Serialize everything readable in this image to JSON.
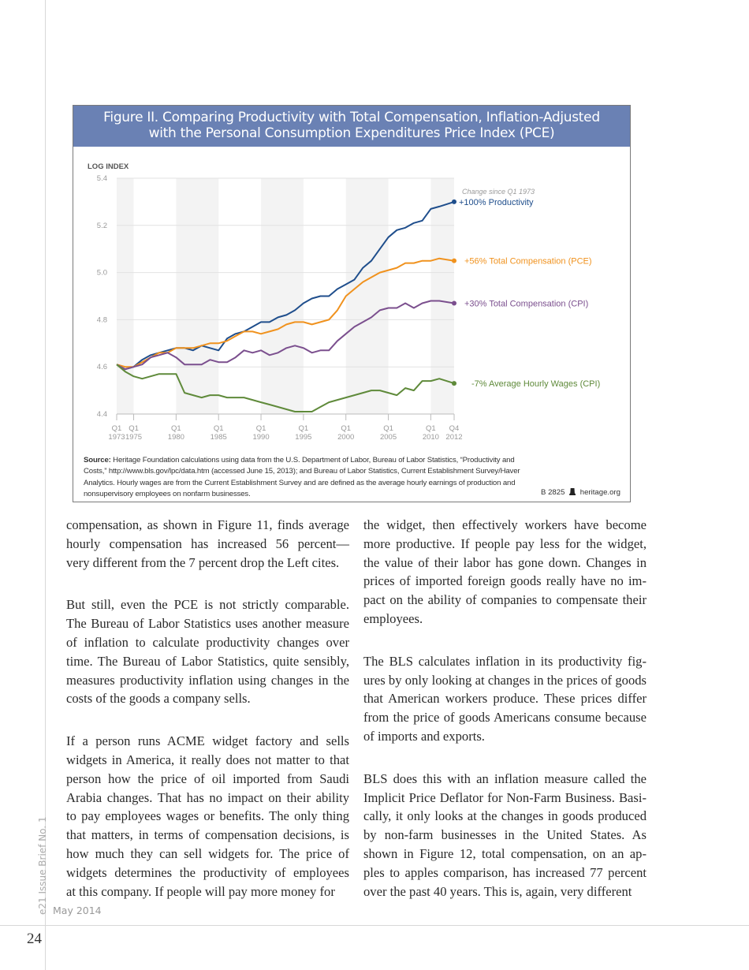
{
  "figure": {
    "title_line1": "Figure II. Comparing Productivity with Total Compensation, Inflation-Adjusted",
    "title_line2": "with the Personal Consumption Expenditures Price Index (PCE)",
    "header_color": "#6a81b4",
    "source_label": "Source:",
    "source_text": " Heritage Foundation calculations using data from the U.S. Department of Labor, Bureau of Labor Statistics, “Productivity and Costs,” http://www.bls.gov/lpc/data.htm (accessed June 15, 2013); and Bureau of Labor Statistics, Current Establishment Survey/Haver Analytics. Hourly wages are from the Current Establishment Survey and are defined as the average hourly earnings of production and nonsupervisory employees on nonfarm businesses.",
    "credit_code": "B 2825",
    "credit_icon": "liberty-bell-icon",
    "credit_site": "heritage.org"
  },
  "chart_data": {
    "type": "line",
    "ylabel": "LOG INDEX",
    "ylim": [
      4.4,
      5.4
    ],
    "yticks": [
      "5.4",
      "5.2",
      "5.0",
      "4.8",
      "4.6",
      "4.4"
    ],
    "ytick_values": [
      5.4,
      5.2,
      5.0,
      4.8,
      4.6,
      4.4
    ],
    "grid": "horizontal",
    "shaded_bands": [
      [
        1973,
        1975
      ],
      [
        1980,
        1985
      ],
      [
        1990,
        1995
      ],
      [
        2000,
        2005
      ],
      [
        2010,
        2012.75
      ]
    ],
    "xticks": [
      {
        "q": "Q1",
        "year": "1973",
        "value": 1973
      },
      {
        "q": "Q1",
        "year": "1975",
        "value": 1975
      },
      {
        "q": "Q1",
        "year": "1980",
        "value": 1980
      },
      {
        "q": "Q1",
        "year": "1985",
        "value": 1985
      },
      {
        "q": "Q1",
        "year": "1990",
        "value": 1990
      },
      {
        "q": "Q1",
        "year": "1995",
        "value": 1995
      },
      {
        "q": "Q1",
        "year": "2000",
        "value": 2000
      },
      {
        "q": "Q1",
        "year": "2005",
        "value": 2005
      },
      {
        "q": "Q1",
        "year": "2010",
        "value": 2010
      },
      {
        "q": "Q4",
        "year": "2012",
        "value": 2012.75
      }
    ],
    "xlim": [
      1973,
      2012.75
    ],
    "legend_note": "Change since Q1 1973",
    "x": [
      1973,
      1974,
      1975,
      1976,
      1977,
      1978,
      1979,
      1980,
      1981,
      1982,
      1983,
      1984,
      1985,
      1986,
      1987,
      1988,
      1989,
      1990,
      1991,
      1992,
      1993,
      1994,
      1995,
      1996,
      1997,
      1998,
      1999,
      2000,
      2001,
      2002,
      2003,
      2004,
      2005,
      2006,
      2007,
      2008,
      2009,
      2010,
      2011,
      2012.75
    ],
    "series": [
      {
        "name": "Productivity",
        "change": "+100%",
        "color": "#1f4e8c",
        "values": [
          4.61,
          4.59,
          4.6,
          4.63,
          4.65,
          4.66,
          4.67,
          4.68,
          4.68,
          4.67,
          4.69,
          4.68,
          4.67,
          4.72,
          4.74,
          4.75,
          4.77,
          4.79,
          4.79,
          4.81,
          4.82,
          4.84,
          4.87,
          4.89,
          4.9,
          4.9,
          4.93,
          4.95,
          4.97,
          5.02,
          5.05,
          5.1,
          5.15,
          5.18,
          5.19,
          5.21,
          5.22,
          5.27,
          5.28,
          5.3
        ]
      },
      {
        "name": "Total Compensation (PCE)",
        "change": "+56%",
        "color": "#f0921e",
        "values": [
          4.61,
          4.6,
          4.6,
          4.62,
          4.64,
          4.66,
          4.66,
          4.68,
          4.68,
          4.68,
          4.69,
          4.7,
          4.7,
          4.71,
          4.73,
          4.75,
          4.75,
          4.74,
          4.75,
          4.76,
          4.78,
          4.79,
          4.79,
          4.78,
          4.79,
          4.8,
          4.84,
          4.9,
          4.93,
          4.96,
          4.98,
          5.0,
          5.01,
          5.02,
          5.04,
          5.04,
          5.05,
          5.05,
          5.06,
          5.05
        ]
      },
      {
        "name": "Total Compensation (CPI)",
        "change": "+30%",
        "color": "#7b4f8e",
        "values": [
          4.61,
          4.59,
          4.6,
          4.61,
          4.64,
          4.65,
          4.66,
          4.64,
          4.61,
          4.61,
          4.61,
          4.63,
          4.62,
          4.62,
          4.64,
          4.67,
          4.66,
          4.67,
          4.65,
          4.66,
          4.68,
          4.69,
          4.68,
          4.66,
          4.67,
          4.67,
          4.71,
          4.74,
          4.77,
          4.79,
          4.81,
          4.84,
          4.85,
          4.85,
          4.87,
          4.85,
          4.87,
          4.88,
          4.88,
          4.87
        ]
      },
      {
        "name": "Average Hourly Wages (CPI)",
        "change": "-7%",
        "color": "#5f8a3a",
        "values": [
          4.61,
          4.58,
          4.56,
          4.55,
          4.56,
          4.57,
          4.57,
          4.57,
          4.49,
          4.48,
          4.47,
          4.48,
          4.48,
          4.47,
          4.47,
          4.47,
          4.46,
          4.45,
          4.44,
          4.43,
          4.42,
          4.41,
          4.41,
          4.41,
          4.43,
          4.45,
          4.46,
          4.47,
          4.48,
          4.49,
          4.5,
          4.5,
          4.49,
          4.48,
          4.51,
          4.5,
          4.54,
          4.54,
          4.55,
          4.53
        ]
      }
    ]
  },
  "body": {
    "left": [
      [
        "compensation, as shown in Figure 11, finds average",
        "hourly compensation has increased 56 percent—",
        "very different from the 7 percent drop the Left cites."
      ],
      [
        "But still, even the PCE is not strictly comparable.",
        "The Bureau of Labor Statistics uses another measure",
        "of inflation to calculate productivity changes over",
        "time. The Bureau of Labor Statistics, quite sensibly,",
        "measures productivity inflation using changes in the",
        "costs of the goods a company sells."
      ],
      [
        "If a person runs ACME widget factory and sells",
        "widgets in America, it really does not matter to that",
        "person how the price of oil imported from Saudi",
        "Arabia changes. That has no impact on their ability",
        "to pay employees wages or benefits. The only thing",
        "that matters, in terms of compensation decisions, is",
        "how much they can sell widgets for. The price of",
        "widgets determines the productivity of employees",
        "at this company. If people will pay more money for"
      ]
    ],
    "right": [
      [
        "the widget, then effectively workers have become",
        "more productive. If people pay less for the widget,",
        "the value of their labor has gone down. Changes in",
        "prices of imported foreign goods really have no im-",
        "pact on the ability of companies to compensate their",
        "employees."
      ],
      [
        "The BLS calculates inflation in its productivity fig-",
        "ures by only looking at changes in the prices of goods",
        "that American workers produce. These prices differ",
        "from the price of goods Americans consume because",
        "of imports and exports."
      ],
      [
        "BLS does this with an inflation measure called the",
        "Implicit Price Deflator for Non-Farm Business. Basi-",
        "cally, it only looks at the changes in goods produced",
        "by non-farm businesses in the United States. As",
        "shown in Figure 12, total compensation, on an ap-",
        "ples to apples comparison, has increased 77 percent",
        "over the past 40 years. This is, again, very different"
      ]
    ]
  },
  "footer": {
    "side_label": "e21 Issue Brief No. 1",
    "date": "May 2014",
    "page_number": "24"
  }
}
